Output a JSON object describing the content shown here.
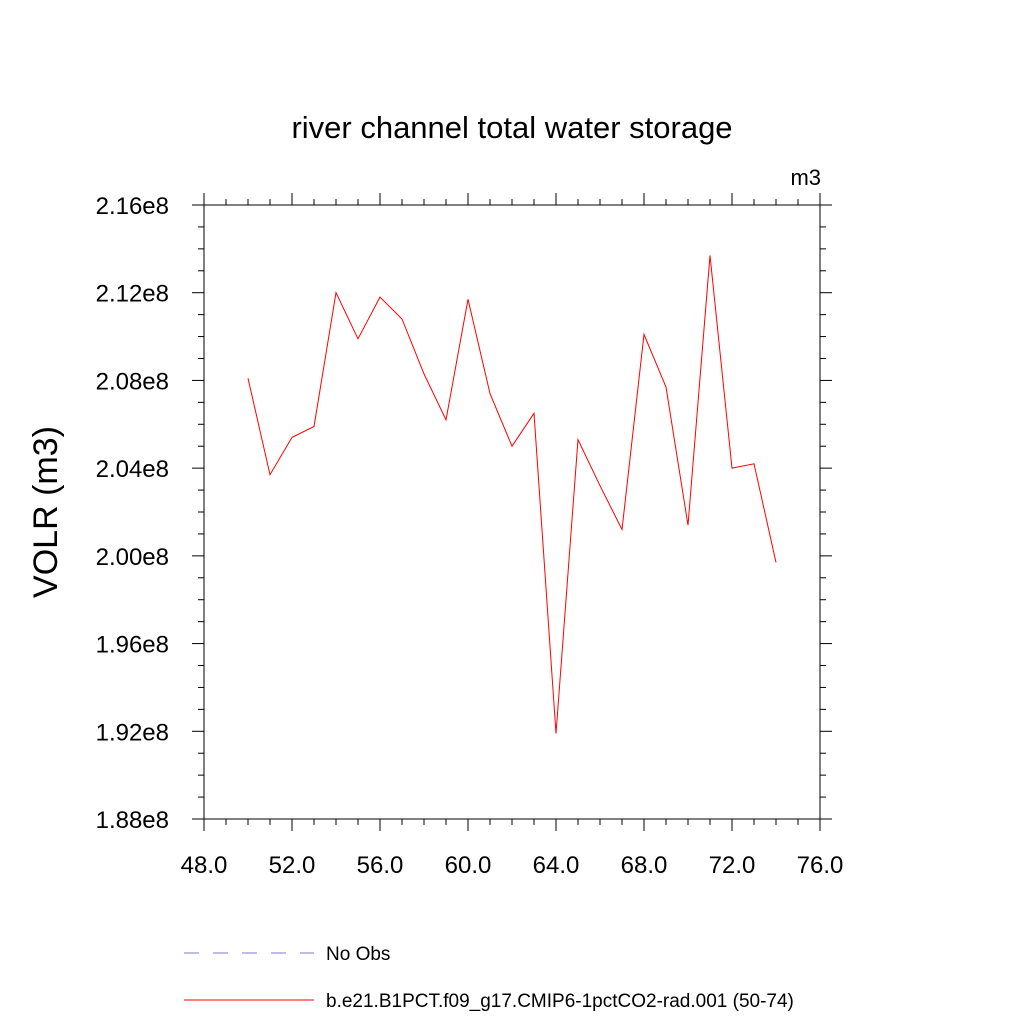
{
  "chart_data": {
    "type": "line",
    "title": "river channel total water storage",
    "units_label": "m3",
    "xlabel": "",
    "ylabel": "VOLR  (m3)",
    "xlim": [
      48,
      76
    ],
    "ylim": [
      188000000,
      216000000
    ],
    "x_ticks": [
      48,
      52,
      56,
      60,
      64,
      68,
      72,
      76
    ],
    "x_tick_labels": [
      "48.0",
      "52.0",
      "56.0",
      "60.0",
      "64.0",
      "68.0",
      "72.0",
      "76.0"
    ],
    "y_ticks": [
      188000000,
      192000000,
      196000000,
      200000000,
      204000000,
      208000000,
      212000000,
      216000000
    ],
    "y_tick_labels": [
      "1.88e8",
      "1.92e8",
      "1.96e8",
      "2.00e8",
      "2.04e8",
      "2.08e8",
      "2.12e8",
      "2.16e8"
    ],
    "grid": false,
    "legend_position": "bottom",
    "series": [
      {
        "name": "No Obs",
        "color": "#7b7bd9",
        "dash": "dashed",
        "x": [],
        "y": []
      },
      {
        "name": "b.e21.B1PCT.f09_g17.CMIP6-1pctCO2-rad.001 (50-74)",
        "color": "#ff0000",
        "dash": "solid",
        "x": [
          50,
          51,
          52,
          53,
          54,
          55,
          56,
          57,
          58,
          59,
          60,
          61,
          62,
          63,
          64,
          65,
          66,
          67,
          68,
          69,
          70,
          71,
          72,
          73,
          74
        ],
        "y": [
          208100000,
          203700000,
          205400000,
          205900000,
          212000000,
          209900000,
          211800000,
          210800000,
          208300000,
          206200000,
          211700000,
          207400000,
          205000000,
          206500000,
          191900000,
          205300000,
          203200000,
          201200000,
          210100000,
          207700000,
          201400000,
          213700000,
          204000000,
          204200000,
          199700000
        ]
      }
    ]
  }
}
